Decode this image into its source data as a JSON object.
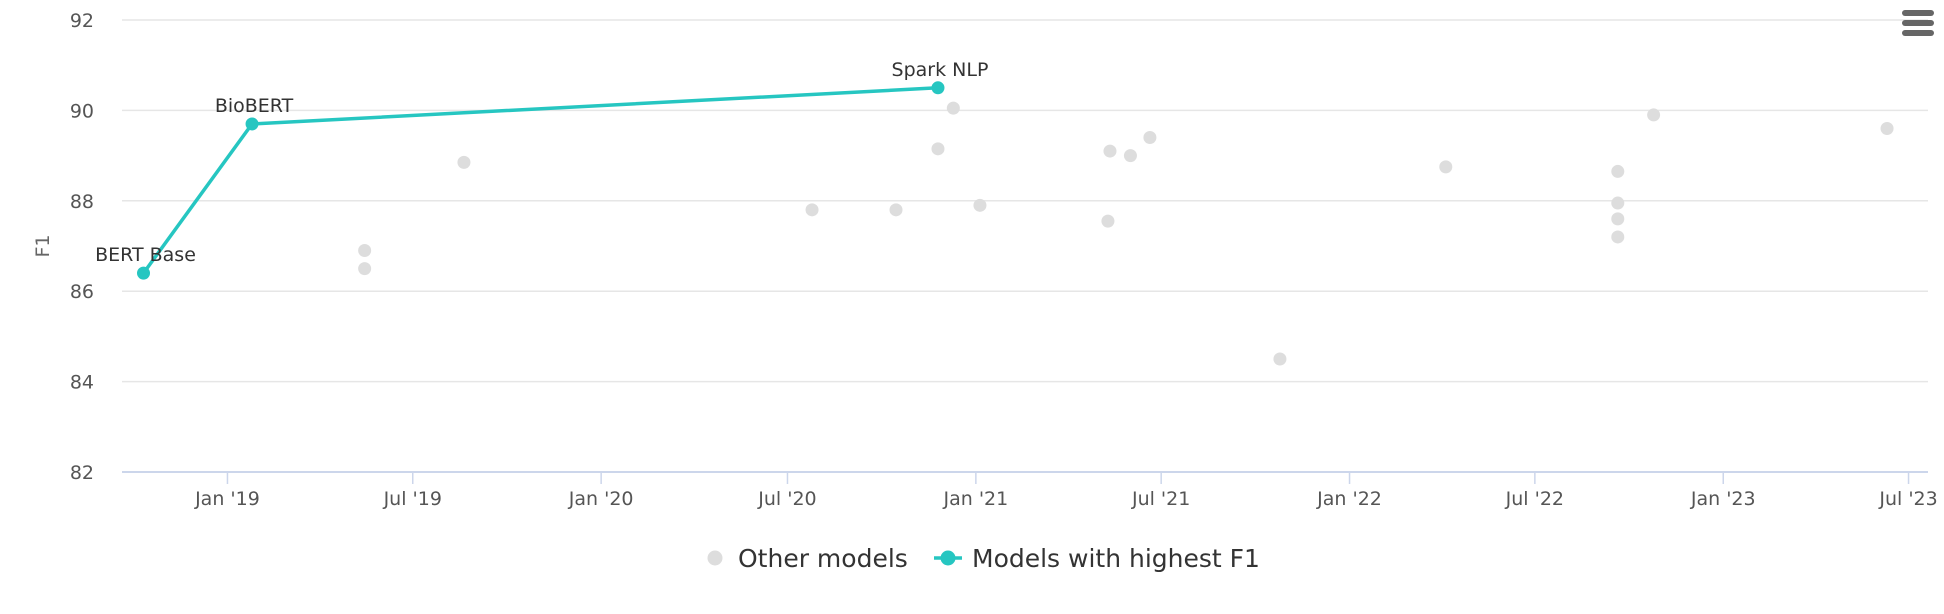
{
  "chart_data": {
    "type": "scatter",
    "title": "",
    "xlabel": "",
    "ylabel": "F1",
    "ylim": [
      82,
      92
    ],
    "yticks": [
      82,
      84,
      86,
      88,
      90,
      92
    ],
    "xlim": [
      "2018-09-20",
      "2023-07-20"
    ],
    "xticks": [
      {
        "date": "2019-01-01",
        "label": "Jan '19"
      },
      {
        "date": "2019-07-01",
        "label": "Jul '19"
      },
      {
        "date": "2020-01-01",
        "label": "Jan '20"
      },
      {
        "date": "2020-07-01",
        "label": "Jul '20"
      },
      {
        "date": "2021-01-01",
        "label": "Jan '21"
      },
      {
        "date": "2021-07-01",
        "label": "Jul '21"
      },
      {
        "date": "2022-01-01",
        "label": "Jan '22"
      },
      {
        "date": "2022-07-01",
        "label": "Jul '22"
      },
      {
        "date": "2023-01-01",
        "label": "Jan '23"
      },
      {
        "date": "2023-07-01",
        "label": "Jul '23"
      }
    ],
    "grid": true,
    "legend_position": "bottom-center",
    "series": [
      {
        "name": "Other models",
        "color": "#dddddd",
        "style": "markers",
        "points": [
          {
            "x": "2019-05-15",
            "y": 86.9
          },
          {
            "x": "2019-05-15",
            "y": 86.5
          },
          {
            "x": "2019-08-20",
            "y": 88.85
          },
          {
            "x": "2020-07-25",
            "y": 87.8
          },
          {
            "x": "2020-10-15",
            "y": 87.8
          },
          {
            "x": "2020-11-25",
            "y": 89.15
          },
          {
            "x": "2020-12-10",
            "y": 90.05
          },
          {
            "x": "2021-01-05",
            "y": 87.9
          },
          {
            "x": "2021-05-10",
            "y": 87.55
          },
          {
            "x": "2021-05-12",
            "y": 89.1
          },
          {
            "x": "2021-06-01",
            "y": 89.0
          },
          {
            "x": "2021-06-20",
            "y": 89.4
          },
          {
            "x": "2021-10-25",
            "y": 84.5
          },
          {
            "x": "2022-04-05",
            "y": 88.75
          },
          {
            "x": "2022-09-20",
            "y": 88.65
          },
          {
            "x": "2022-09-20",
            "y": 87.95
          },
          {
            "x": "2022-09-20",
            "y": 87.6
          },
          {
            "x": "2022-09-20",
            "y": 87.2
          },
          {
            "x": "2022-10-25",
            "y": 89.9
          },
          {
            "x": "2023-06-10",
            "y": 89.6
          }
        ]
      },
      {
        "name": "Models with highest F1",
        "color": "#26c6c1",
        "style": "line-markers",
        "points": [
          {
            "x": "2018-10-11",
            "y": 86.4,
            "label": "BERT Base"
          },
          {
            "x": "2019-01-25",
            "y": 89.7,
            "label": "BioBERT"
          },
          {
            "x": "2020-11-25",
            "y": 90.5,
            "label": "Spark NLP"
          }
        ]
      }
    ]
  },
  "menu": {
    "icon": "hamburger-menu-icon"
  }
}
